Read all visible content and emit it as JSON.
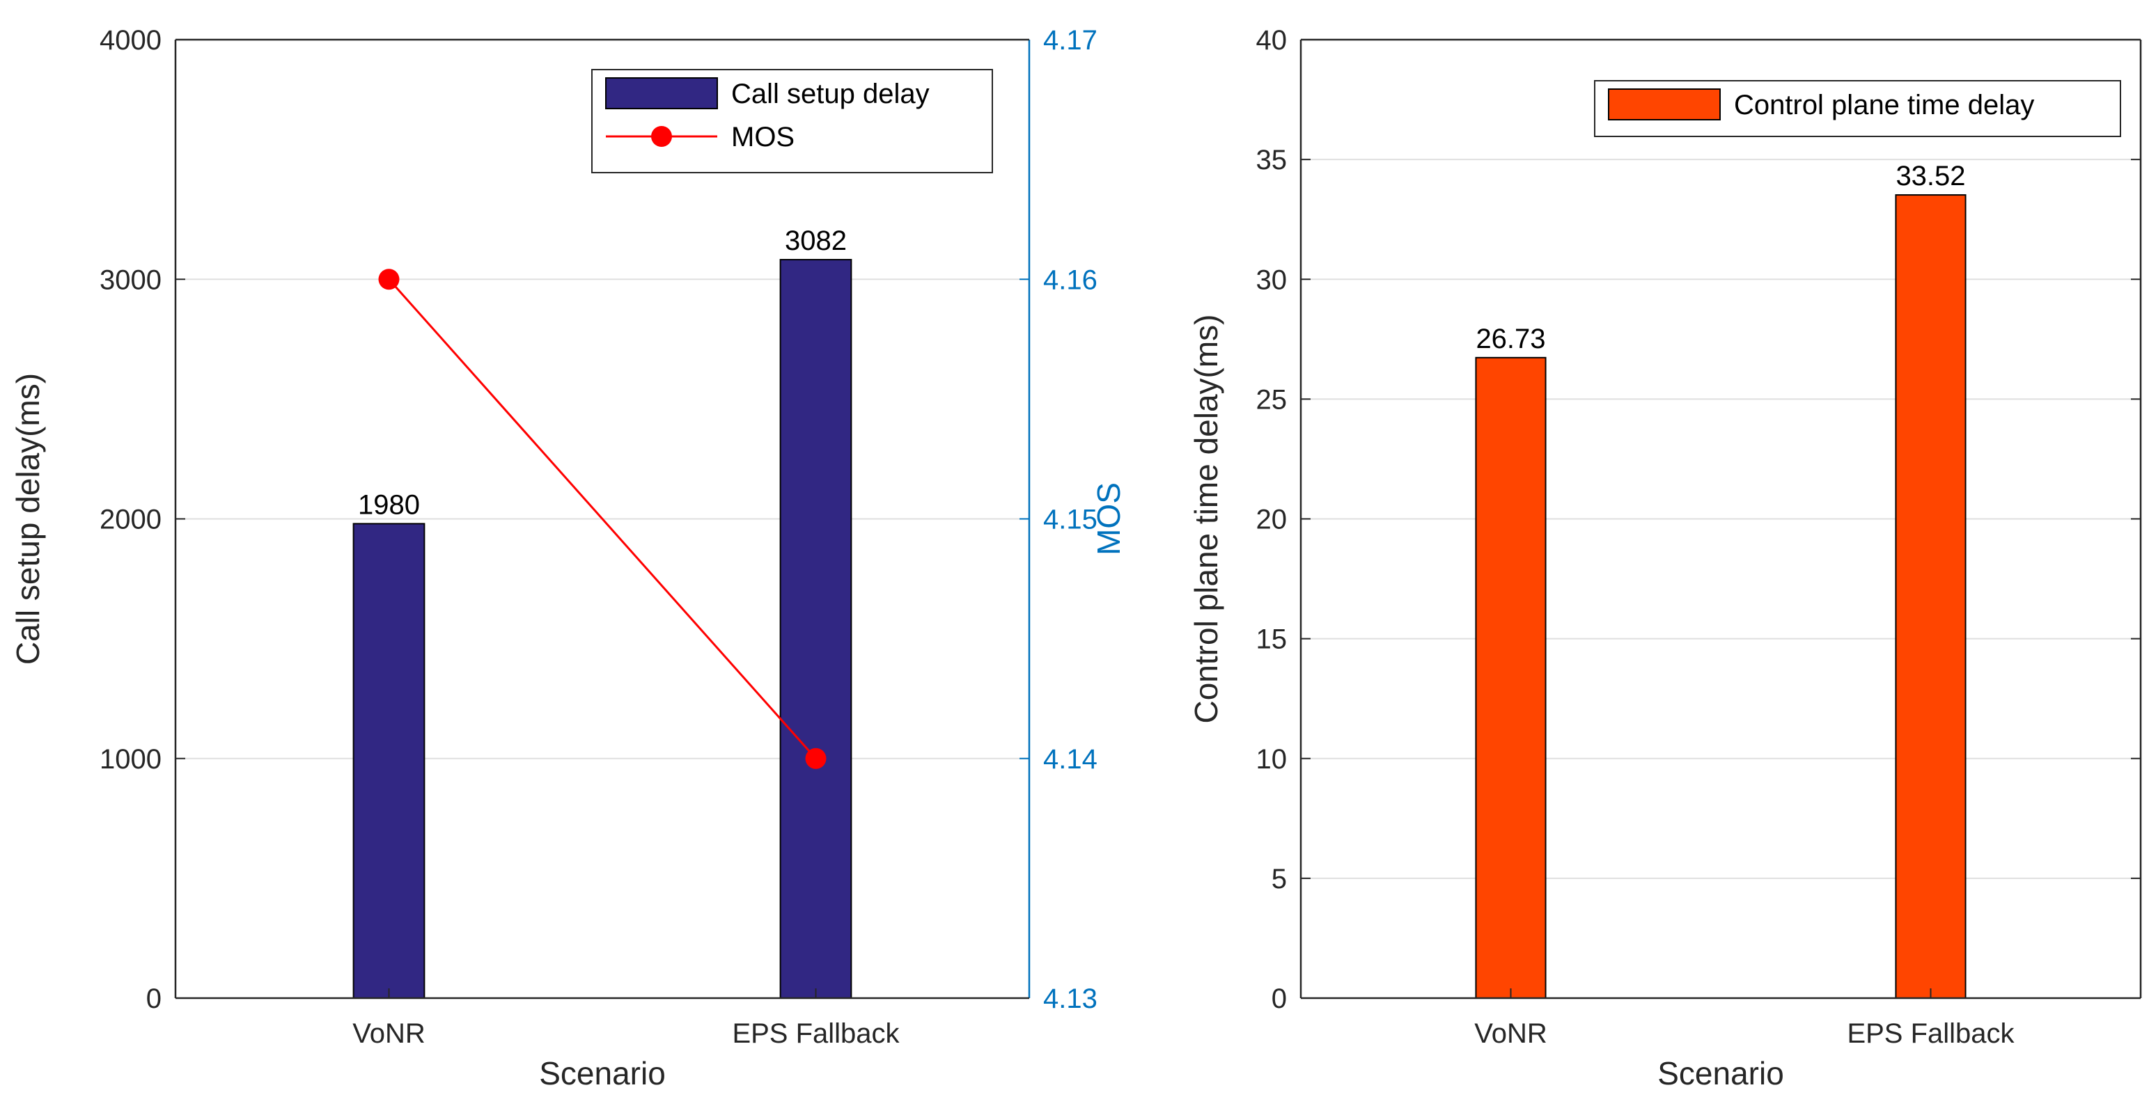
{
  "chart_data": [
    {
      "type": "bar",
      "title": "",
      "xlabel": "Scenario",
      "ylabel": "Call setup delay(ms)",
      "y2label": "MOS",
      "categories": [
        "VoNR",
        "EPS Fallback"
      ],
      "ylim": [
        0,
        4000
      ],
      "yticks": [
        0,
        1000,
        2000,
        3000,
        4000
      ],
      "y2lim": [
        4.13,
        4.17
      ],
      "y2ticks": [
        "4.13",
        "4.14",
        "4.15",
        "4.16",
        "4.17"
      ],
      "grid": true,
      "legend_position": "top-right",
      "series": [
        {
          "name": "Call setup delay",
          "kind": "bar",
          "axis": "left",
          "values": [
            1980,
            3082
          ],
          "labels": [
            "1980",
            "3082"
          ],
          "color": "#312783"
        },
        {
          "name": "MOS",
          "kind": "line",
          "axis": "right",
          "values": [
            4.16,
            4.14
          ],
          "color": "#ff0000"
        }
      ],
      "axis2_color": "#0072bd"
    },
    {
      "type": "bar",
      "title": "",
      "xlabel": "Scenario",
      "ylabel": "Control plane time delay(ms)",
      "categories": [
        "VoNR",
        "EPS Fallback"
      ],
      "ylim": [
        0,
        40
      ],
      "yticks": [
        0,
        5,
        10,
        15,
        20,
        25,
        30,
        35,
        40
      ],
      "grid": true,
      "legend_position": "top-right",
      "series": [
        {
          "name": "Control plane time delay",
          "kind": "bar",
          "axis": "left",
          "values": [
            26.73,
            33.52
          ],
          "labels": [
            "26.73",
            "33.52"
          ],
          "color": "#ff4500"
        }
      ]
    }
  ]
}
